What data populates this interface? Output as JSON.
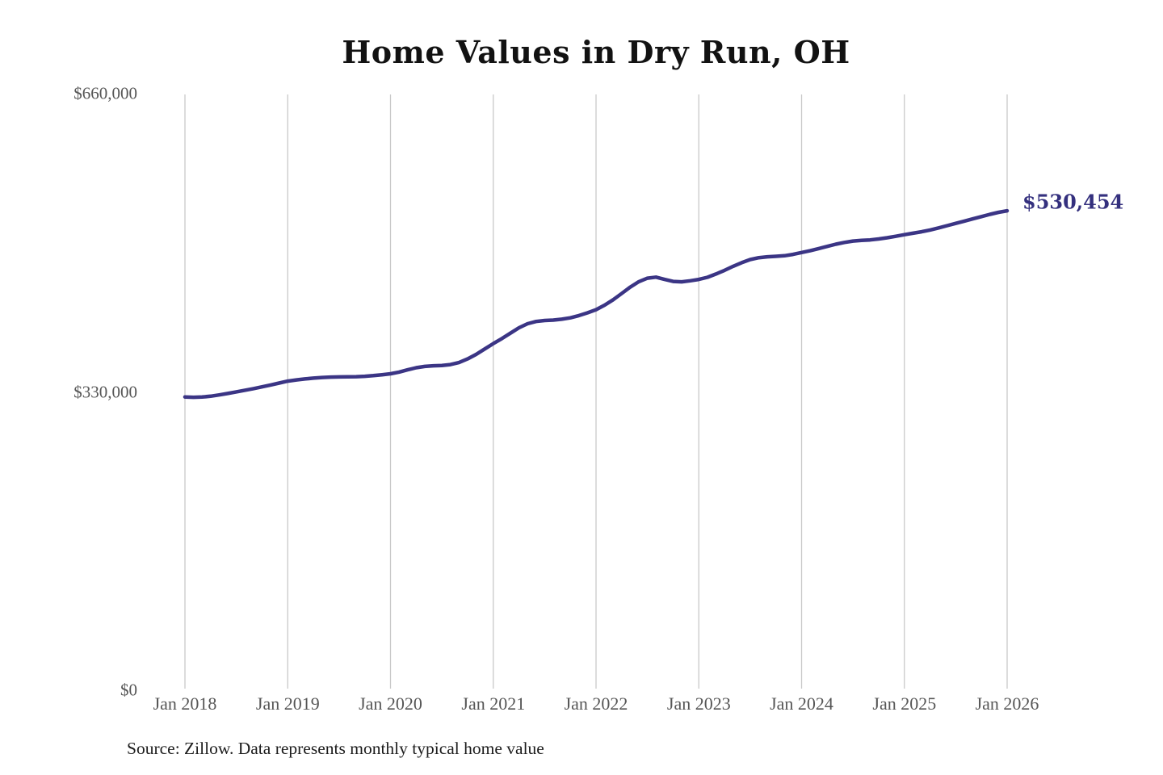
{
  "title": "Home Values in Dry Run, OH",
  "end_label": "$530,454",
  "source_note": "Source: Zillow. Data represents monthly typical home value",
  "colors": {
    "line": "#3b3585",
    "grid": "#c9c9c9",
    "axis_label": "#565656",
    "end_label": "#34307e",
    "title": "#121212",
    "background": "#ffffff"
  },
  "chart_data": {
    "type": "line",
    "title": "Home Values in Dry Run, OH",
    "xlabel": "",
    "ylabel": "",
    "ylim": [
      0,
      660000
    ],
    "y_ticks": [
      0,
      330000,
      660000
    ],
    "y_tick_labels": [
      "$0",
      "$330,000",
      "$660,000"
    ],
    "x_tick_labels": [
      "Jan 2018",
      "Jan 2019",
      "Jan 2020",
      "Jan 2021",
      "Jan 2022",
      "Jan 2023",
      "Jan 2024",
      "Jan 2025",
      "Jan 2026"
    ],
    "grid": "vertical-only",
    "legend": "none",
    "frequency": "monthly",
    "x_start": "Jan 2018",
    "x_end": "Jan 2026",
    "final_value": 530454,
    "final_value_label": "$530,454",
    "series": [
      {
        "name": "Typical home value",
        "values": [
          324500,
          324100,
          324400,
          325300,
          326700,
          328300,
          330100,
          331900,
          333700,
          335600,
          337700,
          339800,
          342000,
          343300,
          344400,
          345300,
          346000,
          346400,
          346600,
          346700,
          346900,
          347300,
          348000,
          349000,
          350100,
          352000,
          354500,
          356800,
          358200,
          358900,
          359300,
          360300,
          362500,
          366500,
          371500,
          377500,
          383500,
          389000,
          395000,
          401000,
          405500,
          408000,
          409000,
          409500,
          410500,
          412000,
          414500,
          417500,
          421000,
          426000,
          432000,
          439000,
          446000,
          452000,
          455800,
          457000,
          454500,
          452300,
          451800,
          453000,
          454500,
          456800,
          460500,
          464500,
          469000,
          473000,
          476500,
          478500,
          479500,
          480000,
          480700,
          482200,
          484200,
          486200,
          488600,
          491000,
          493400,
          495400,
          496900,
          497600,
          498200,
          499200,
          500600,
          502200,
          504000,
          505600,
          507200,
          509200,
          511500,
          514000,
          516500,
          519000,
          521500,
          524000,
          526500,
          528700,
          530454
        ]
      }
    ]
  }
}
